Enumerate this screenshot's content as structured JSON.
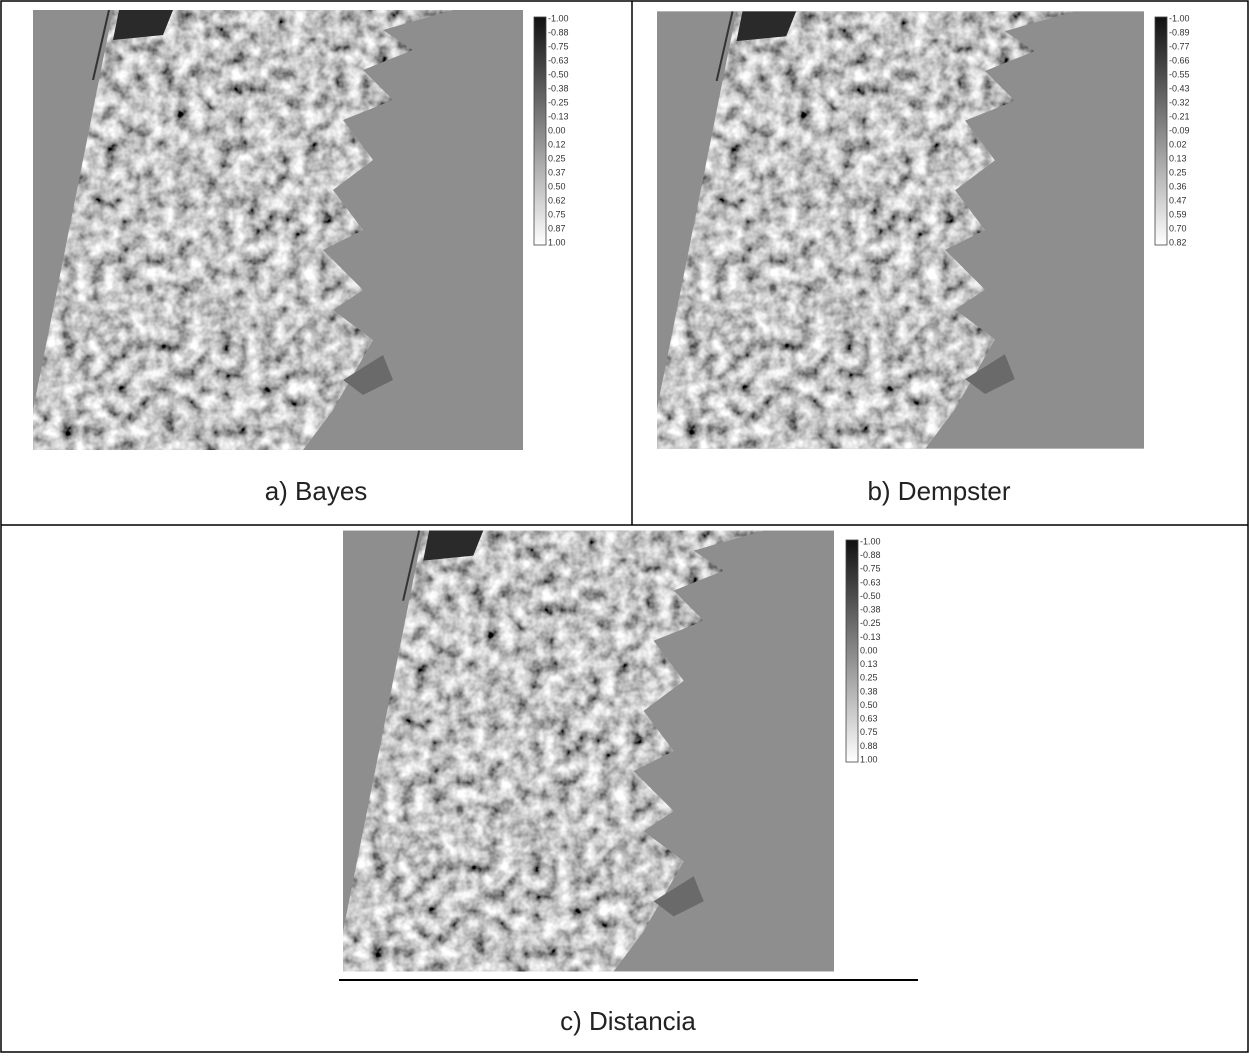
{
  "panels": [
    {
      "caption": "a) Bayes",
      "legend": [
        "-1.00",
        "-0.88",
        "-0.75",
        "-0.63",
        "-0.50",
        "-0.38",
        "-0.25",
        "-0.13",
        "0.00",
        "0.12",
        "0.25",
        "0.37",
        "0.50",
        "0.62",
        "0.75",
        "0.87",
        "1.00"
      ]
    },
    {
      "caption": "b) Dempster",
      "legend": [
        "-1.00",
        "-0.89",
        "-0.77",
        "-0.66",
        "-0.55",
        "-0.43",
        "-0.32",
        "-0.21",
        "-0.09",
        "0.02",
        "0.13",
        "0.25",
        "0.36",
        "0.47",
        "0.59",
        "0.70",
        "0.82"
      ]
    },
    {
      "caption": "c) Distancia",
      "legend": [
        "-1.00",
        "-0.88",
        "-0.75",
        "-0.63",
        "-0.50",
        "-0.38",
        "-0.25",
        "-0.13",
        "0.00",
        "0.13",
        "0.25",
        "0.38",
        "0.50",
        "0.63",
        "0.75",
        "0.88",
        "1.00"
      ]
    }
  ]
}
